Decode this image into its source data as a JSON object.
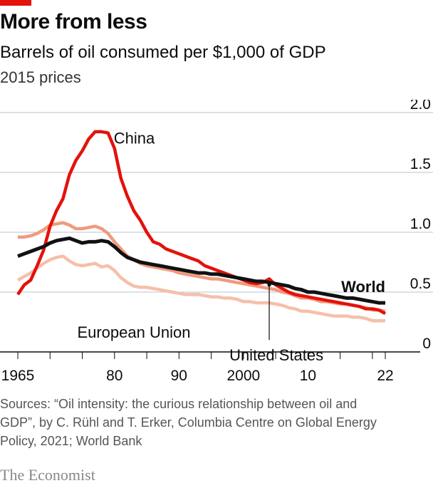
{
  "header": {
    "title": "More from less",
    "subtitle": "Barrels of oil consumed per $1,000 of GDP",
    "units": "2015 prices"
  },
  "footer": {
    "source": "Sources: “Oil intensity: the curious relationship between oil and GDP”, by C. Rühl and T. Erker, Columbia Centre on Global Energy Policy, 2021; World Bank",
    "brand": "The Economist"
  },
  "colors": {
    "china": "#e3120b",
    "us": "#f09a7e",
    "eu": "#f6bfa9",
    "world": "#111111",
    "accent": "#e3120b"
  },
  "chart_data": {
    "type": "line",
    "x": [
      1965,
      1966,
      1967,
      1968,
      1969,
      1970,
      1971,
      1972,
      1973,
      1974,
      1975,
      1976,
      1977,
      1978,
      1979,
      1980,
      1981,
      1982,
      1983,
      1984,
      1985,
      1986,
      1987,
      1988,
      1989,
      1990,
      1991,
      1992,
      1993,
      1994,
      1995,
      1996,
      1997,
      1998,
      1999,
      2000,
      2001,
      2002,
      2003,
      2004,
      2005,
      2006,
      2007,
      2008,
      2009,
      2010,
      2011,
      2012,
      2013,
      2014,
      2015,
      2016,
      2017,
      2018,
      2019,
      2020,
      2021,
      2022
    ],
    "xticks": [
      1965,
      1980,
      1990,
      2000,
      2010,
      2022
    ],
    "xtick_labels": [
      "1965",
      "80",
      "90",
      "2000",
      "10",
      "22"
    ],
    "ylim": [
      0,
      2.0
    ],
    "yticks": [
      0,
      0.5,
      1.0,
      1.5,
      2.0
    ],
    "ytick_labels": [
      "0",
      "0.5",
      "1.0",
      "1.5",
      "2.0"
    ],
    "grid": true,
    "series": [
      {
        "name": "China",
        "key": "china",
        "values": [
          0.48,
          0.56,
          0.6,
          0.72,
          0.85,
          1.05,
          1.18,
          1.28,
          1.48,
          1.6,
          1.68,
          1.78,
          1.84,
          1.84,
          1.83,
          1.7,
          1.45,
          1.3,
          1.18,
          1.1,
          1.0,
          0.92,
          0.9,
          0.86,
          0.84,
          0.82,
          0.8,
          0.78,
          0.76,
          0.72,
          0.7,
          0.68,
          0.66,
          0.64,
          0.62,
          0.6,
          0.58,
          0.57,
          0.58,
          0.61,
          0.56,
          0.53,
          0.5,
          0.48,
          0.47,
          0.46,
          0.45,
          0.44,
          0.43,
          0.42,
          0.41,
          0.4,
          0.39,
          0.38,
          0.36,
          0.36,
          0.35,
          0.32
        ]
      },
      {
        "name": "United States",
        "key": "us",
        "values": [
          0.96,
          0.96,
          0.97,
          0.99,
          1.02,
          1.06,
          1.07,
          1.08,
          1.06,
          1.03,
          1.03,
          1.04,
          1.05,
          1.03,
          0.99,
          0.92,
          0.86,
          0.8,
          0.77,
          0.74,
          0.72,
          0.71,
          0.7,
          0.69,
          0.68,
          0.66,
          0.65,
          0.64,
          0.63,
          0.62,
          0.61,
          0.61,
          0.6,
          0.59,
          0.58,
          0.57,
          0.56,
          0.55,
          0.54,
          0.53,
          0.52,
          0.5,
          0.49,
          0.47,
          0.45,
          0.45,
          0.44,
          0.42,
          0.42,
          0.41,
          0.4,
          0.4,
          0.39,
          0.38,
          0.37,
          0.35,
          0.35,
          0.34
        ]
      },
      {
        "name": "European Union",
        "key": "eu",
        "values": [
          0.6,
          0.63,
          0.66,
          0.7,
          0.74,
          0.77,
          0.79,
          0.8,
          0.76,
          0.73,
          0.72,
          0.73,
          0.74,
          0.71,
          0.72,
          0.68,
          0.62,
          0.58,
          0.55,
          0.54,
          0.54,
          0.53,
          0.52,
          0.51,
          0.5,
          0.49,
          0.48,
          0.48,
          0.48,
          0.47,
          0.46,
          0.46,
          0.45,
          0.45,
          0.44,
          0.42,
          0.42,
          0.41,
          0.41,
          0.41,
          0.4,
          0.39,
          0.37,
          0.36,
          0.34,
          0.34,
          0.33,
          0.32,
          0.31,
          0.3,
          0.3,
          0.3,
          0.29,
          0.29,
          0.28,
          0.26,
          0.26,
          0.26
        ]
      },
      {
        "name": "World",
        "key": "world",
        "values": [
          0.8,
          0.82,
          0.84,
          0.86,
          0.88,
          0.91,
          0.93,
          0.94,
          0.95,
          0.93,
          0.91,
          0.92,
          0.92,
          0.93,
          0.92,
          0.88,
          0.83,
          0.79,
          0.77,
          0.75,
          0.74,
          0.73,
          0.72,
          0.71,
          0.7,
          0.69,
          0.68,
          0.67,
          0.66,
          0.66,
          0.65,
          0.65,
          0.64,
          0.63,
          0.62,
          0.61,
          0.6,
          0.59,
          0.59,
          0.58,
          0.57,
          0.56,
          0.55,
          0.53,
          0.52,
          0.5,
          0.5,
          0.49,
          0.48,
          0.47,
          0.46,
          0.45,
          0.45,
          0.44,
          0.43,
          0.42,
          0.41,
          0.41
        ]
      }
    ],
    "annotations": [
      {
        "series": "china",
        "text": "China"
      },
      {
        "series": "eu",
        "text": "European Union"
      },
      {
        "series": "us",
        "text": "United States"
      },
      {
        "series": "world",
        "text": "World"
      }
    ]
  }
}
